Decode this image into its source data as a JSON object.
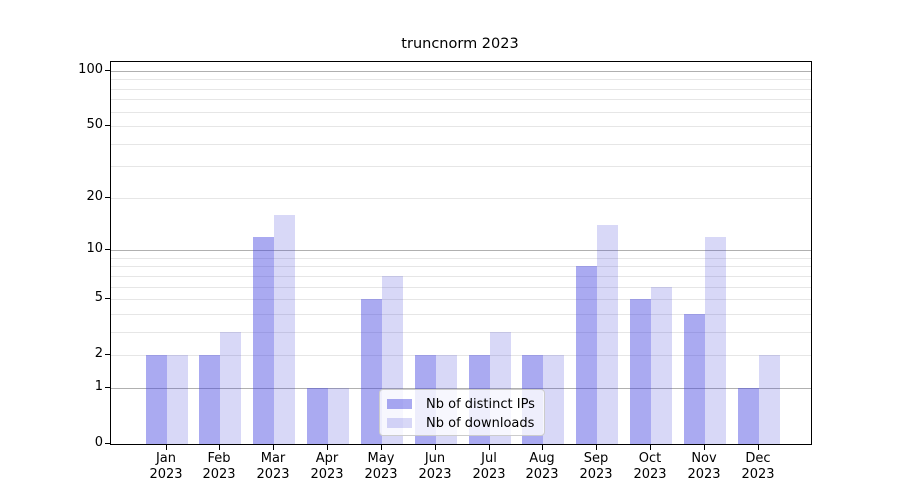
{
  "title": "truncnorm 2023",
  "chart_data": {
    "type": "bar",
    "categories": [
      {
        "month": "Jan",
        "year": "2023"
      },
      {
        "month": "Feb",
        "year": "2023"
      },
      {
        "month": "Mar",
        "year": "2023"
      },
      {
        "month": "Apr",
        "year": "2023"
      },
      {
        "month": "May",
        "year": "2023"
      },
      {
        "month": "Jun",
        "year": "2023"
      },
      {
        "month": "Jul",
        "year": "2023"
      },
      {
        "month": "Aug",
        "year": "2023"
      },
      {
        "month": "Sep",
        "year": "2023"
      },
      {
        "month": "Oct",
        "year": "2023"
      },
      {
        "month": "Nov",
        "year": "2023"
      },
      {
        "month": "Dec",
        "year": "2023"
      }
    ],
    "series": [
      {
        "name": "Nb of distinct IPs",
        "color": "rgba(62,62,224,0.44)",
        "solid_hex": "#aaaaf0",
        "values": [
          2,
          2,
          12,
          1,
          5,
          2,
          2,
          2,
          8,
          5,
          4,
          1
        ]
      },
      {
        "name": "Nb of downloads",
        "color": "rgba(62,62,214,0.20)",
        "solid_hex": "#d8d8f7",
        "values": [
          2,
          3,
          16,
          1,
          7,
          2,
          3,
          2,
          14,
          6,
          12,
          2
        ]
      }
    ],
    "yscale": "log1p",
    "ylim": [
      0,
      110
    ],
    "y_tick_labels": [
      "0",
      "1",
      "2",
      "5",
      "10",
      "20",
      "50",
      "100"
    ],
    "y_tick_values": [
      0,
      1,
      2,
      5,
      10,
      20,
      50,
      100
    ],
    "y_major_grid_values": [
      1,
      10,
      100
    ],
    "y_minor_grid_values": [
      2,
      3,
      4,
      5,
      6,
      7,
      8,
      9,
      20,
      30,
      40,
      50,
      60,
      70,
      80,
      90
    ],
    "grid": "on",
    "legend_position": "lower-center",
    "xlabel": "",
    "ylabel": ""
  },
  "legend": {
    "items": [
      {
        "label": "Nb of distinct IPs"
      },
      {
        "label": "Nb of downloads"
      }
    ]
  },
  "colors": {
    "major_grid": "#b0b0b0",
    "minor_grid": "#e6e6e6",
    "spine": "#000000",
    "background": "#ffffff"
  }
}
